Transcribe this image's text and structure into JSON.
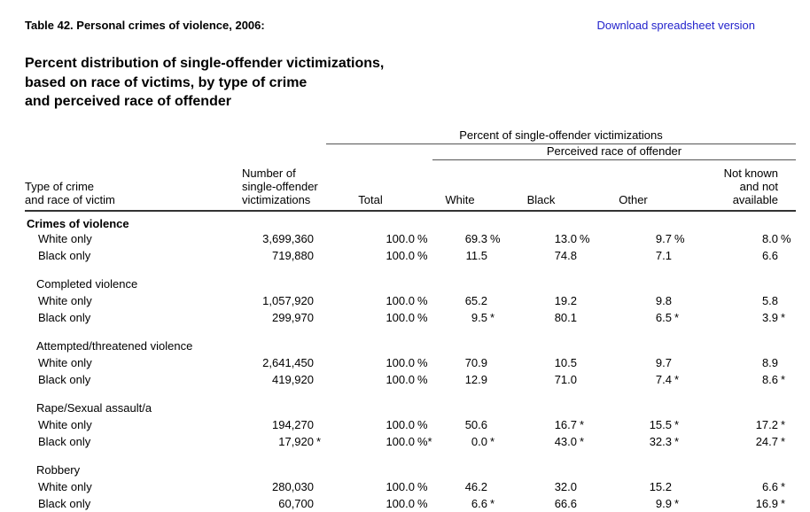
{
  "page": {
    "title": "Table 42. Personal crimes of violence, 2006:",
    "download_link": "Download spreadsheet version",
    "heading": "Percent distribution of single-offender victimizations,\nbased on race of victims, by type of crime\nand perceived race of offender"
  },
  "colors": {
    "link_blue": "#2323cc",
    "rule_dark": "#333333",
    "rule_gray": "#555555"
  },
  "table": {
    "spanner_top": "Percent of single-offender victimizations",
    "spanner_sub": "Perceived race of offender",
    "headers": {
      "col1": "Type of crime\nand race of victim",
      "col2": "Number of\nsingle-offender\nvictimizations",
      "total": "Total",
      "white": "White",
      "black": "Black",
      "other": "Other",
      "not_known": "Not known\nand not\navailable"
    },
    "rows": [
      {
        "type": "section_bold",
        "label": "Crimes of violence"
      },
      {
        "type": "data",
        "label": "White only",
        "num": "3,699,360",
        "num_s": "",
        "cells": [
          {
            "v": "100.0",
            "s": "%"
          },
          {
            "v": "69.3",
            "s": "%"
          },
          {
            "v": "13.0",
            "s": "%"
          },
          {
            "v": "9.7",
            "s": "%"
          },
          {
            "v": "8.0",
            "s": "%"
          }
        ]
      },
      {
        "type": "data",
        "label": "Black only",
        "num": "719,880",
        "num_s": "",
        "cells": [
          {
            "v": "100.0",
            "s": "%"
          },
          {
            "v": "11.5",
            "s": ""
          },
          {
            "v": "74.8",
            "s": ""
          },
          {
            "v": "7.1",
            "s": ""
          },
          {
            "v": "6.6",
            "s": ""
          }
        ]
      },
      {
        "type": "spacer"
      },
      {
        "type": "section",
        "label": "Completed violence"
      },
      {
        "type": "data",
        "label": "White only",
        "num": "1,057,920",
        "num_s": "",
        "cells": [
          {
            "v": "100.0",
            "s": "%"
          },
          {
            "v": "65.2",
            "s": ""
          },
          {
            "v": "19.2",
            "s": ""
          },
          {
            "v": "9.8",
            "s": ""
          },
          {
            "v": "5.8",
            "s": ""
          }
        ]
      },
      {
        "type": "data",
        "label": "Black only",
        "num": "299,970",
        "num_s": "",
        "cells": [
          {
            "v": "100.0",
            "s": "%"
          },
          {
            "v": "9.5",
            "s": "*"
          },
          {
            "v": "80.1",
            "s": ""
          },
          {
            "v": "6.5",
            "s": "*"
          },
          {
            "v": "3.9",
            "s": "*"
          }
        ]
      },
      {
        "type": "spacer"
      },
      {
        "type": "section",
        "label": "Attempted/threatened violence"
      },
      {
        "type": "data",
        "label": "White only",
        "num": "2,641,450",
        "num_s": "",
        "cells": [
          {
            "v": "100.0",
            "s": "%"
          },
          {
            "v": "70.9",
            "s": ""
          },
          {
            "v": "10.5",
            "s": ""
          },
          {
            "v": "9.7",
            "s": ""
          },
          {
            "v": "8.9",
            "s": ""
          }
        ]
      },
      {
        "type": "data",
        "label": "Black only",
        "num": "419,920",
        "num_s": "",
        "cells": [
          {
            "v": "100.0",
            "s": "%"
          },
          {
            "v": "12.9",
            "s": ""
          },
          {
            "v": "71.0",
            "s": ""
          },
          {
            "v": "7.4",
            "s": "*"
          },
          {
            "v": "8.6",
            "s": "*"
          }
        ]
      },
      {
        "type": "spacer"
      },
      {
        "type": "section",
        "label": "Rape/Sexual assault/a"
      },
      {
        "type": "data",
        "label": "White only",
        "num": "194,270",
        "num_s": "",
        "cells": [
          {
            "v": "100.0",
            "s": "%"
          },
          {
            "v": "50.6",
            "s": ""
          },
          {
            "v": "16.7",
            "s": "*"
          },
          {
            "v": "15.5",
            "s": "*"
          },
          {
            "v": "17.2",
            "s": "*"
          }
        ]
      },
      {
        "type": "data",
        "label": "Black only",
        "num": "17,920",
        "num_s": "*",
        "cells": [
          {
            "v": "100.0",
            "s": "%*"
          },
          {
            "v": "0.0",
            "s": "*"
          },
          {
            "v": "43.0",
            "s": "*"
          },
          {
            "v": "32.3",
            "s": "*"
          },
          {
            "v": "24.7",
            "s": "*"
          }
        ]
      },
      {
        "type": "spacer"
      },
      {
        "type": "section",
        "label": "Robbery"
      },
      {
        "type": "data",
        "label": "White only",
        "num": "280,030",
        "num_s": "",
        "cells": [
          {
            "v": "100.0",
            "s": "%"
          },
          {
            "v": "46.2",
            "s": ""
          },
          {
            "v": "32.0",
            "s": ""
          },
          {
            "v": "15.2",
            "s": ""
          },
          {
            "v": "6.6",
            "s": "*"
          }
        ]
      },
      {
        "type": "data",
        "label": "Black only",
        "num": "60,700",
        "num_s": "",
        "cells": [
          {
            "v": "100.0",
            "s": "%"
          },
          {
            "v": "6.6",
            "s": "*"
          },
          {
            "v": "66.6",
            "s": ""
          },
          {
            "v": "9.9",
            "s": "*"
          },
          {
            "v": "16.9",
            "s": "*"
          }
        ]
      }
    ]
  }
}
